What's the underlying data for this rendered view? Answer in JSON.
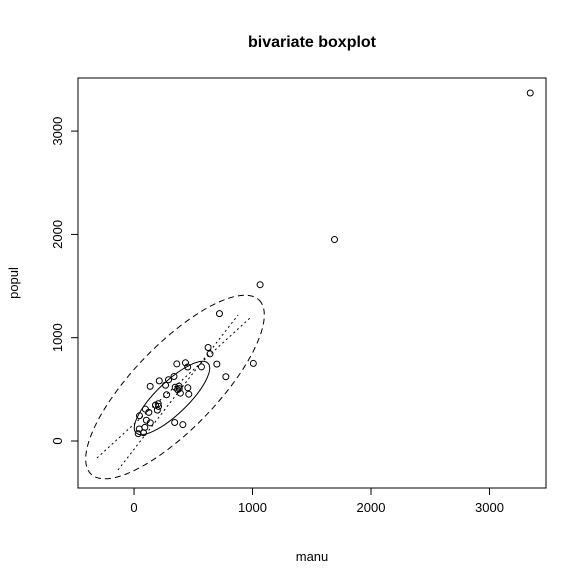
{
  "chart_data": {
    "type": "scatter",
    "title": "bivariate boxplot",
    "xlabel": "manu",
    "ylabel": "popul",
    "x": [
      44,
      46,
      368,
      625,
      391,
      35,
      3344,
      462,
      1007,
      266,
      641,
      454,
      104,
      1064,
      412,
      721,
      361,
      136,
      381,
      91,
      291,
      337,
      207,
      569,
      699,
      275,
      204,
      96,
      181,
      1692,
      213,
      347,
      343,
      197,
      137,
      453,
      379,
      775,
      434,
      125,
      80
    ],
    "values": [
      116,
      244,
      497,
      905,
      463,
      71,
      3369,
      453,
      751,
      540,
      844,
      515,
      201,
      1513,
      158,
      1233,
      746,
      529,
      507,
      132,
      593,
      624,
      335,
      717,
      744,
      448,
      361,
      308,
      347,
      1950,
      582,
      520,
      179,
      299,
      176,
      716,
      531,
      622,
      757,
      277,
      80
    ],
    "color": "#000000",
    "xlim": [
      -473,
      3477
    ],
    "ylim": [
      -455,
      3514
    ],
    "xticks": [
      0,
      1000,
      2000,
      3000
    ],
    "yticks": [
      0,
      1000,
      2000,
      3000
    ]
  }
}
